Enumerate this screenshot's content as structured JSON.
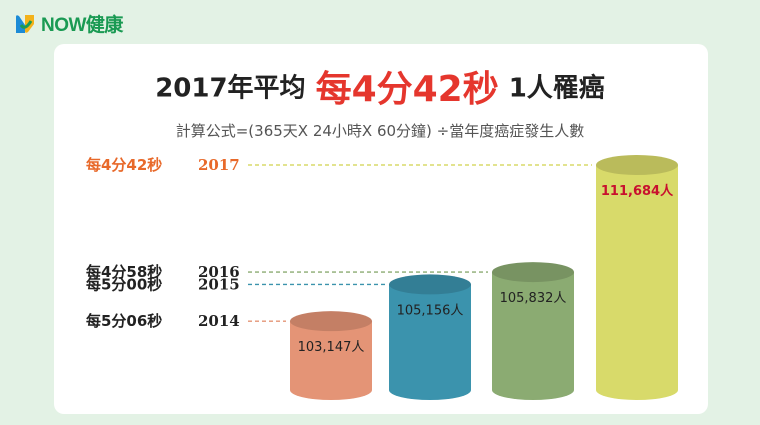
{
  "brand": {
    "logo_text": "NOW健康",
    "logo_color": "#1a9a53"
  },
  "title": {
    "prefix": "2017年平均",
    "highlight": "每4分42秒",
    "suffix": "1人罹癌"
  },
  "subtitle": "計算公式=(365天X 24小時X 60分鐘) ÷當年度癌症發生人數",
  "colors": {
    "highlight": "#e5362d",
    "background": "#e3f2e5"
  },
  "chart_data": {
    "type": "bar",
    "categories": [
      "2014",
      "2015",
      "2016",
      "2017"
    ],
    "intervals": [
      "每5分06秒",
      "每5分00秒",
      "每4分58秒",
      "每4分42秒"
    ],
    "values": [
      103147,
      105156,
      105832,
      111684
    ],
    "value_labels": [
      "103,147人",
      "105,156人",
      "105,832人",
      "111,684人"
    ],
    "colors": [
      "#e49476",
      "#3b93ad",
      "#8bab72",
      "#d8da6a"
    ],
    "highlight_index": 3
  }
}
